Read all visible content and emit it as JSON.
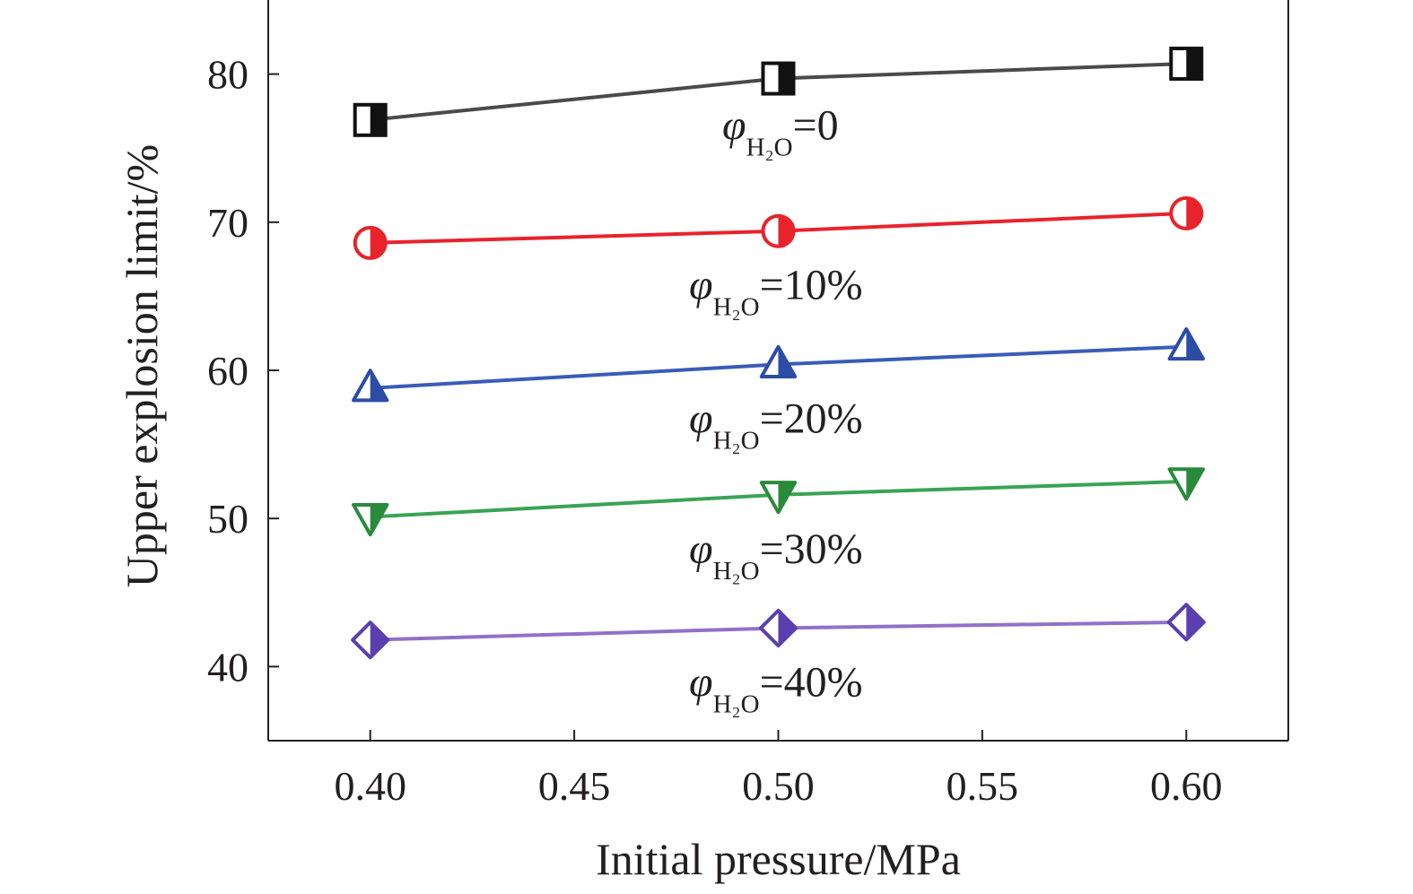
{
  "chart_data": {
    "type": "line",
    "xlabel": "Initial pressure/MPa",
    "ylabel": "Upper explosion limit/%",
    "xlim": [
      0.375,
      0.625
    ],
    "ylim": [
      35,
      85
    ],
    "x_ticks": [
      "0.40",
      "0.45",
      "0.50",
      "0.55",
      "0.60"
    ],
    "y_ticks": [
      "40",
      "50",
      "60",
      "70",
      "80"
    ],
    "x": [
      0.4,
      0.5,
      0.6
    ],
    "series": [
      {
        "name": "φH2O=0",
        "label": {
          "symbol": "φ",
          "sub": "H₂O",
          "value": "=0"
        },
        "values": [
          76.9,
          79.7,
          80.7
        ],
        "color": "#111111",
        "line_color": "#4a4a4a",
        "marker": "square"
      },
      {
        "name": "φH2O=10%",
        "label": {
          "symbol": "φ",
          "sub": "H₂O",
          "value": "=10%"
        },
        "values": [
          68.6,
          69.4,
          70.6
        ],
        "color": "#e8232b",
        "line_color": "#e8232b",
        "marker": "circle"
      },
      {
        "name": "φH2O=20%",
        "label": {
          "symbol": "φ",
          "sub": "H₂O",
          "value": "=20%"
        },
        "values": [
          58.8,
          60.4,
          61.6
        ],
        "color": "#2c4da6",
        "line_color": "#3a5cb8",
        "marker": "triangle-up"
      },
      {
        "name": "φH2O=30%",
        "label": {
          "symbol": "φ",
          "sub": "H₂O",
          "value": "=30%"
        },
        "values": [
          50.1,
          51.6,
          52.5
        ],
        "color": "#2a8a3c",
        "line_color": "#3aa356",
        "marker": "triangle-down"
      },
      {
        "name": "φH2O=40%",
        "label": {
          "symbol": "φ",
          "sub": "H₂O",
          "value": "=40%"
        },
        "values": [
          41.8,
          42.6,
          43.0
        ],
        "color": "#5a3fb0",
        "line_color": "#9370c8",
        "marker": "diamond"
      }
    ]
  }
}
